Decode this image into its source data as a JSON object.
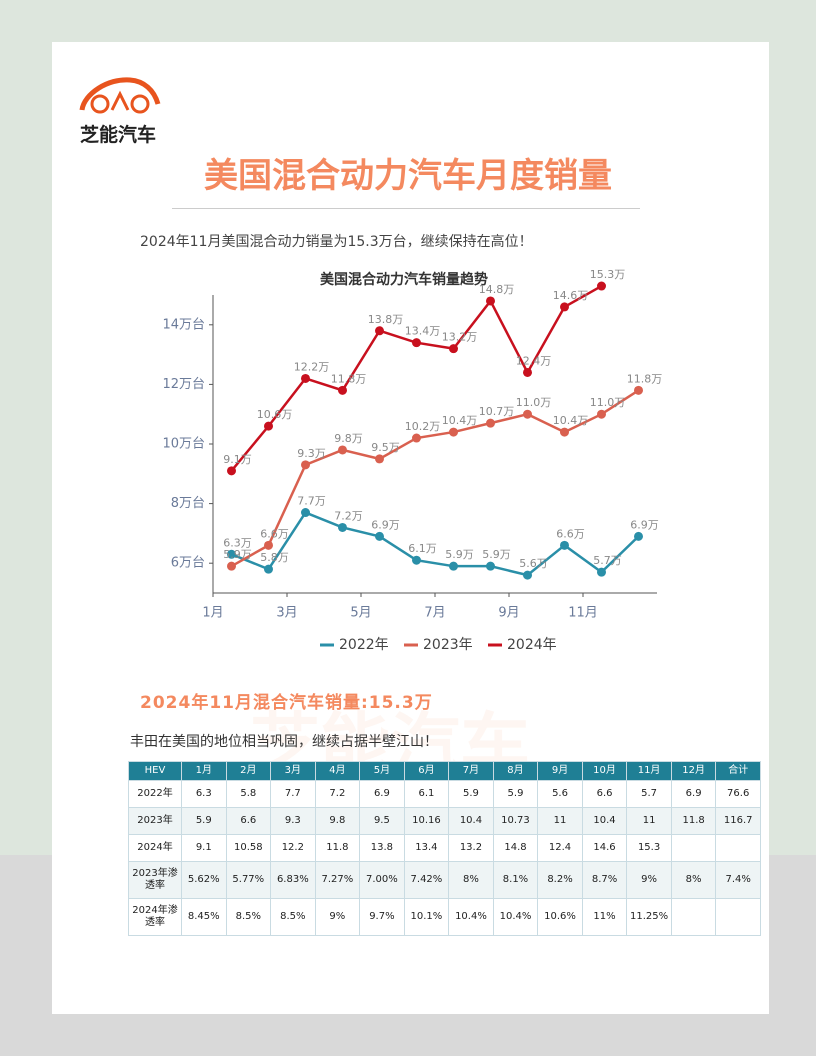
{
  "brand": "芝能汽车",
  "title": "美国混合动力汽车月度销量",
  "intro": "2024年11月美国混合动力销量为15.3万台，继续保持在高位！",
  "chart_data": {
    "type": "line",
    "title": "美国混合动力汽车销量趋势",
    "categories": [
      "1月",
      null,
      "3月",
      null,
      "5月",
      null,
      "7月",
      null,
      "9月",
      null,
      "11月",
      null
    ],
    "ylim": [
      5,
      15
    ],
    "yticks": [
      {
        "value": 6,
        "label": "6万台"
      },
      {
        "value": 8,
        "label": "8万台"
      },
      {
        "value": 10,
        "label": "10万台"
      },
      {
        "value": 12,
        "label": "12万台"
      },
      {
        "value": 14,
        "label": "14万台"
      }
    ],
    "legend": "bottom",
    "grid": false,
    "series": [
      {
        "name": "2022年",
        "color": "#2a8fa8",
        "values": [
          6.3,
          5.8,
          7.7,
          7.2,
          6.9,
          6.1,
          5.9,
          5.9,
          5.6,
          6.6,
          5.7,
          6.9
        ],
        "value_labels": [
          "6.3万",
          "5.8万",
          "7.7万",
          "7.2万",
          "6.9万",
          "6.1万",
          "5.9万",
          "5.9万",
          "5.6万",
          "6.6万",
          "5.7万",
          "6.9万"
        ]
      },
      {
        "name": "2023年",
        "color": "#d9604f",
        "values": [
          5.9,
          6.6,
          9.3,
          9.8,
          9.5,
          10.2,
          10.4,
          10.7,
          11.0,
          10.4,
          11.0,
          11.8
        ],
        "value_labels": [
          "5.9万",
          "6.6万",
          "9.3万",
          "9.8万",
          "9.5万",
          "10.2万",
          "10.4万",
          "10.7万",
          "11.0万",
          "10.4万",
          "11.0万",
          "11.8万"
        ]
      },
      {
        "name": "2024年",
        "color": "#c8101e",
        "values": [
          9.1,
          10.6,
          12.2,
          11.8,
          13.8,
          13.4,
          13.2,
          14.8,
          12.4,
          14.6,
          15.3,
          null
        ],
        "value_labels": [
          "9.1万",
          "10.6万",
          "12.2万",
          "11.8万",
          "13.8万",
          "13.4万",
          "13.2万",
          "14.8万",
          "12.4万",
          "14.6万",
          "15.3万",
          null
        ]
      }
    ]
  },
  "section_title": "2024年11月混合汽车销量:15.3万",
  "section_text": "丰田在美国的地位相当巩固，继续占据半壁江山！",
  "table": {
    "header": [
      "HEV",
      "1月",
      "2月",
      "3月",
      "4月",
      "5月",
      "6月",
      "7月",
      "8月",
      "9月",
      "10月",
      "11月",
      "12月",
      "合计"
    ],
    "rows": [
      [
        "2022年",
        "6.3",
        "5.8",
        "7.7",
        "7.2",
        "6.9",
        "6.1",
        "5.9",
        "5.9",
        "5.6",
        "6.6",
        "5.7",
        "6.9",
        "76.6"
      ],
      [
        "2023年",
        "5.9",
        "6.6",
        "9.3",
        "9.8",
        "9.5",
        "10.16",
        "10.4",
        "10.73",
        "11",
        "10.4",
        "11",
        "11.8",
        "116.7"
      ],
      [
        "2024年",
        "9.1",
        "10.58",
        "12.2",
        "11.8",
        "13.8",
        "13.4",
        "13.2",
        "14.8",
        "12.4",
        "14.6",
        "15.3",
        null,
        null
      ],
      [
        "2023年渗透率",
        "5.62%",
        "5.77%",
        "6.83%",
        "7.27%",
        "7.00%",
        "7.42%",
        "8%",
        "8.1%",
        "8.2%",
        "8.7%",
        "9%",
        "8%",
        "7.4%"
      ],
      [
        "2024年渗透率",
        "8.45%",
        "8.5%",
        "8.5%",
        "9%",
        "9.7%",
        "10.1%",
        "10.4%",
        "10.4%",
        "10.6%",
        "11%",
        "11.25%",
        null,
        null
      ]
    ]
  }
}
